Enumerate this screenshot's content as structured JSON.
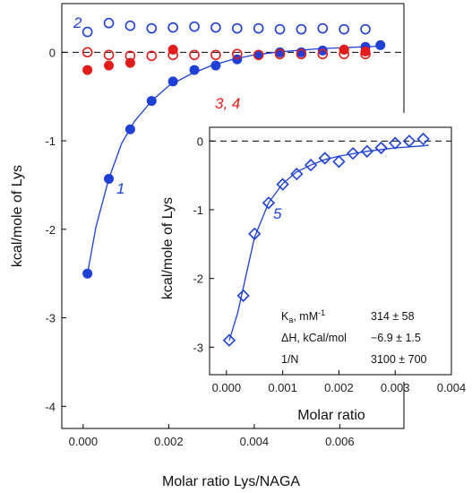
{
  "chart_data": [
    {
      "type": "scatter",
      "title": "",
      "xlabel": "Molar ratio Lys/NAGA",
      "ylabel": "kcal/mole of Lys",
      "xlim": [
        -0.0005,
        0.0075
      ],
      "ylim": [
        -4.25,
        0.55
      ],
      "xticks": [
        "0.000",
        "0.002",
        "0.004",
        "0.006"
      ],
      "xtick_values": [
        0,
        0.002,
        0.004,
        0.006
      ],
      "yticks": [
        "0",
        "-1",
        "-2",
        "-3",
        "-4"
      ],
      "ytick_values": [
        0,
        -1,
        -2,
        -3,
        -4
      ],
      "zero_line": "dashed",
      "grid": false,
      "legend": "none",
      "series": [
        {
          "name": "1",
          "color": "#1f3fd6",
          "marker": "filled-circle",
          "x": [
            0.0001,
            0.0006,
            0.0011,
            0.0016,
            0.0021,
            0.0026,
            0.0031,
            0.0036,
            0.0041,
            0.0046,
            0.0051,
            0.0056,
            0.0061,
            0.0066,
            0.00695
          ],
          "y": [
            -2.5,
            -1.43,
            -0.87,
            -0.55,
            -0.33,
            -0.2,
            -0.15,
            -0.08,
            -0.03,
            0.0,
            0.0,
            0.02,
            0.03,
            0.06,
            0.08
          ]
        },
        {
          "name": "2",
          "color": "#1f3fd6",
          "marker": "open-circle",
          "x": [
            0.0001,
            0.0006,
            0.0011,
            0.0016,
            0.0021,
            0.0026,
            0.0031,
            0.0036,
            0.0041,
            0.0046,
            0.0051,
            0.0056,
            0.0061,
            0.0066
          ],
          "y": [
            0.23,
            0.33,
            0.3,
            0.27,
            0.28,
            0.29,
            0.28,
            0.27,
            0.27,
            0.26,
            0.26,
            0.27,
            0.26,
            0.26
          ]
        },
        {
          "name": "3, 4",
          "color": "#e21b1b",
          "marker": "filled-circle",
          "x": [
            0.0001,
            0.0006,
            0.0011,
            0.0021,
            0.0061,
            0.0066
          ],
          "y": [
            -0.2,
            -0.15,
            -0.12,
            0.03,
            0.03,
            0.01
          ]
        },
        {
          "name": "",
          "color": "#e21b1b",
          "marker": "open-circle",
          "x": [
            0.0001,
            0.0006,
            0.0011,
            0.0016,
            0.0021,
            0.0026,
            0.0031,
            0.0036,
            0.0041,
            0.0046,
            0.0051,
            0.0056,
            0.0061,
            0.0066
          ],
          "y": [
            0.0,
            -0.03,
            -0.04,
            -0.04,
            -0.03,
            -0.03,
            -0.03,
            -0.02,
            -0.03,
            -0.02,
            -0.02,
            -0.02,
            -0.02,
            -0.02
          ]
        }
      ],
      "fit": {
        "series": "1",
        "color": "#1f3fd6",
        "x": [
          0.0001,
          0.0003,
          0.0006,
          0.0009,
          0.0012,
          0.0016,
          0.002,
          0.0025,
          0.003,
          0.0035,
          0.004,
          0.0045,
          0.005,
          0.0055,
          0.006,
          0.0065,
          0.007
        ],
        "y": [
          -2.5,
          -1.97,
          -1.43,
          -1.03,
          -0.78,
          -0.55,
          -0.38,
          -0.25,
          -0.15,
          -0.08,
          -0.03,
          0.0,
          0.02,
          0.04,
          0.05,
          0.06,
          0.07
        ]
      }
    },
    {
      "type": "scatter",
      "title": "",
      "xlabel": "Molar ratio",
      "ylabel": "kcal/mole of Lys",
      "xlim": [
        -0.0003,
        0.004
      ],
      "ylim": [
        -3.4,
        0.2
      ],
      "xticks": [
        "0.000",
        "0.001",
        "0.002",
        "0.003",
        "0.004"
      ],
      "xtick_values": [
        0,
        0.001,
        0.002,
        0.003,
        0.004
      ],
      "yticks": [
        "0",
        "-1",
        "-2",
        "-3"
      ],
      "ytick_values": [
        0,
        -1,
        -2,
        -3
      ],
      "zero_line": "dashed",
      "grid": false,
      "legend": "none",
      "series": [
        {
          "name": "5",
          "color": "#1f3fd6",
          "marker": "open-diamond",
          "x": [
            5e-05,
            0.0003,
            0.0005,
            0.00075,
            0.001,
            0.00125,
            0.0015,
            0.00175,
            0.002,
            0.00225,
            0.0025,
            0.00275,
            0.003,
            0.00325,
            0.0035
          ],
          "y": [
            -2.9,
            -2.25,
            -1.35,
            -0.9,
            -0.63,
            -0.48,
            -0.35,
            -0.25,
            -0.3,
            -0.18,
            -0.15,
            -0.1,
            -0.03,
            0.0,
            0.03
          ]
        }
      ],
      "fit": {
        "series": "5",
        "color": "#1f3fd6",
        "x": [
          5e-05,
          0.0002,
          0.00035,
          0.0005,
          0.00075,
          0.001,
          0.00125,
          0.0015,
          0.00175,
          0.002,
          0.0025,
          0.003,
          0.0035,
          0.0036
        ],
        "y": [
          -2.9,
          -2.5,
          -1.95,
          -1.4,
          -0.9,
          -0.62,
          -0.45,
          -0.35,
          -0.27,
          -0.22,
          -0.15,
          -0.1,
          -0.07,
          -0.06
        ]
      },
      "parameters": [
        {
          "label": "Ka, mM-1",
          "value": "314 ± 58"
        },
        {
          "label": "ΔH, kCal/mol",
          "value": "−6.9 ± 1.5"
        },
        {
          "label": "1/N",
          "value": "3100 ± 700"
        }
      ]
    }
  ]
}
